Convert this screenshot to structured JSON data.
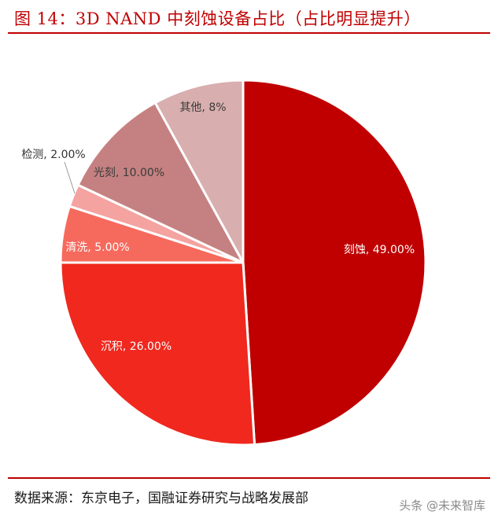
{
  "figure": {
    "title": "图 14：3D NAND 中刻蚀设备占比（占比明显提升）",
    "source": "数据来源：东京电子，国融证券研究与战略发展部",
    "watermark": "头条 @未来智库"
  },
  "chart_data": {
    "type": "pie",
    "title": "",
    "legend": "none",
    "start_angle_deg": 0,
    "direction": "clockwise",
    "slices": [
      {
        "label": "刻蚀",
        "value": 49,
        "display": "刻蚀, 49.00%",
        "color": "#c00000",
        "label_color": "#ffffff"
      },
      {
        "label": "沉积",
        "value": 26,
        "display": "沉积, 26.00%",
        "color": "#f0281e",
        "label_color": "#ffffff"
      },
      {
        "label": "清洗",
        "value": 5,
        "display": "清洗, 5.00%",
        "color": "#f66a5e",
        "label_color": "#ffffff"
      },
      {
        "label": "检测",
        "value": 2,
        "display": "检测, 2.00%",
        "color": "#f4a3a0",
        "label_color": "#333333"
      },
      {
        "label": "光刻",
        "value": 10,
        "display": "光刻, 10.00%",
        "color": "#c58181",
        "label_color": "#3a3a3a"
      },
      {
        "label": "其他",
        "value": 8,
        "display": "其他, 8%",
        "color": "#d8aeae",
        "label_color": "#3a3a3a"
      }
    ]
  }
}
